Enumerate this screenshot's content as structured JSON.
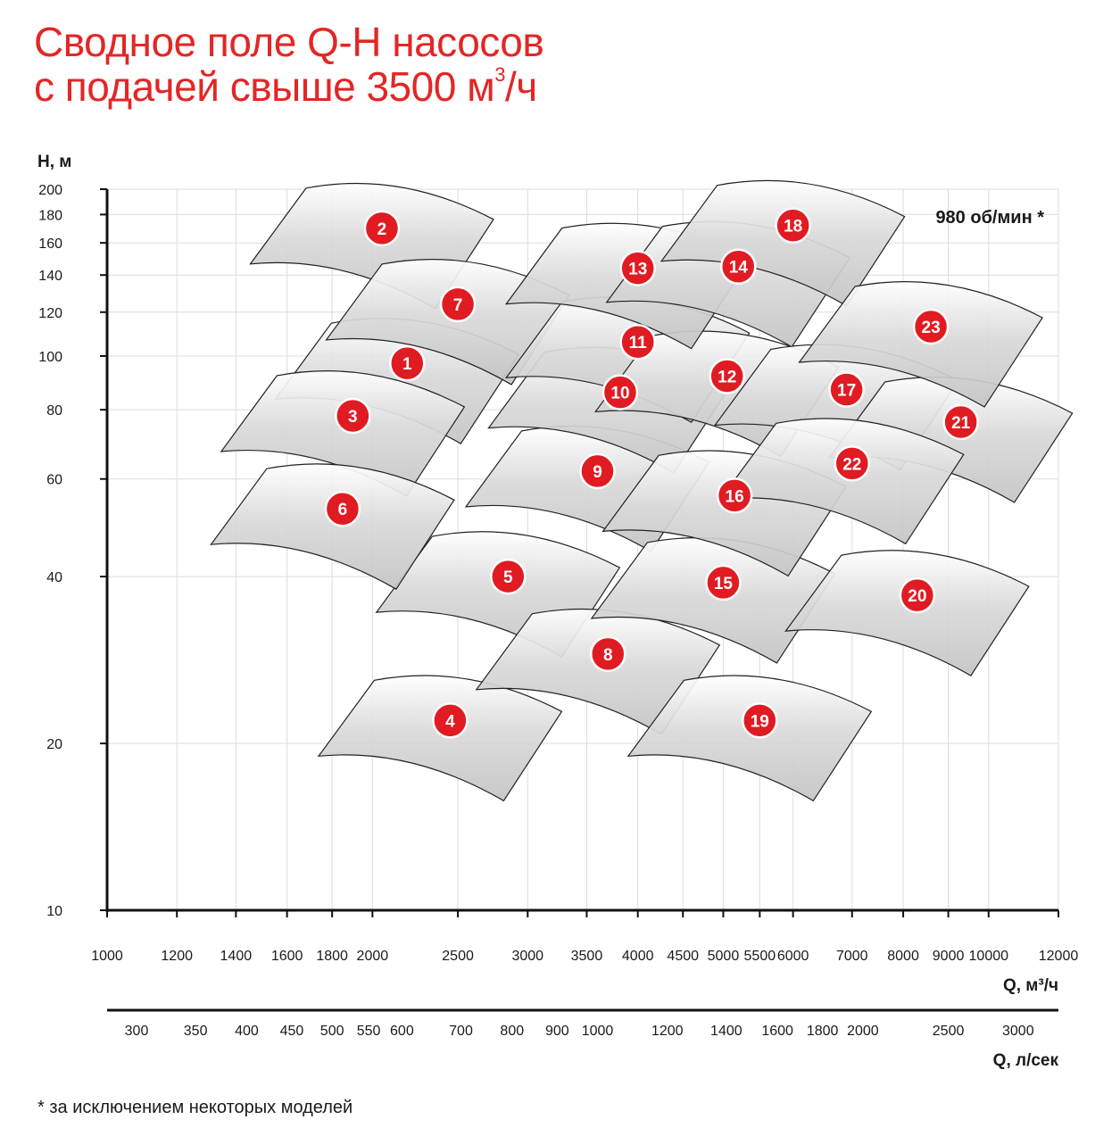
{
  "title": {
    "line1": "Сводное поле Q-H насосов",
    "line2_prefix": "с подачей свыше 3500 м",
    "line2_sup": "3",
    "line2_suffix": "/ч"
  },
  "footnote": "* за исключением некоторых моделей",
  "chart_data": {
    "type": "area",
    "y_axis": {
      "label": "H, м",
      "scale": "log",
      "range": [
        10,
        200
      ],
      "ticks": [
        10,
        20,
        40,
        60,
        80,
        100,
        120,
        140,
        160,
        180,
        200
      ],
      "tick_labels": [
        "10",
        "20",
        "40",
        "60",
        "80",
        "100",
        "120",
        "140",
        "160",
        "180",
        "200"
      ]
    },
    "x_axis": {
      "label": "Q, м³/ч",
      "scale": "log",
      "range": [
        1000,
        12000
      ],
      "ticks": [
        1000,
        1200,
        1400,
        1600,
        1800,
        2000,
        2500,
        3000,
        3500,
        4000,
        4500,
        5000,
        5500,
        6000,
        7000,
        8000,
        9000,
        10000,
        12000
      ],
      "tick_labels": [
        "1000",
        "1200",
        "1400",
        "1600",
        "1800",
        "2000",
        "2500",
        "3000",
        "3500",
        "4000",
        "4500",
        "5000",
        "5500",
        "6000",
        "7000",
        "8000",
        "9000",
        "10000",
        "12000"
      ]
    },
    "x2_axis": {
      "label": "Q, л/сек",
      "ticks": [
        300,
        350,
        400,
        450,
        500,
        550,
        600,
        700,
        800,
        900,
        1000,
        1200,
        1400,
        1600,
        1800,
        2000,
        2500,
        3000
      ],
      "tick_labels": [
        "300",
        "350",
        "400",
        "450",
        "500",
        "550",
        "600",
        "700",
        "800",
        "900",
        "1000",
        "1200",
        "1400",
        "1600",
        "1800",
        "2000",
        "2500",
        "3000"
      ]
    },
    "annotation": "980 об/мин *",
    "grid": true,
    "badge_color": "#e11b22",
    "region_fill": "#c9c9c9",
    "regions": [
      {
        "label": "1",
        "center": {
          "q": 2190,
          "h": 97
        }
      },
      {
        "label": "2",
        "center": {
          "q": 2050,
          "h": 170
        }
      },
      {
        "label": "3",
        "center": {
          "q": 1900,
          "h": 78
        }
      },
      {
        "label": "4",
        "center": {
          "q": 2450,
          "h": 22
        }
      },
      {
        "label": "5",
        "center": {
          "q": 2850,
          "h": 40
        }
      },
      {
        "label": "6",
        "center": {
          "q": 1850,
          "h": 53
        }
      },
      {
        "label": "7",
        "center": {
          "q": 2500,
          "h": 124
        }
      },
      {
        "label": "8",
        "center": {
          "q": 3700,
          "h": 29
        }
      },
      {
        "label": "9",
        "center": {
          "q": 3600,
          "h": 62
        }
      },
      {
        "label": "10",
        "center": {
          "q": 3820,
          "h": 86
        }
      },
      {
        "label": "11",
        "center": {
          "q": 4000,
          "h": 106
        }
      },
      {
        "label": "12",
        "center": {
          "q": 5050,
          "h": 92
        }
      },
      {
        "label": "13",
        "center": {
          "q": 4000,
          "h": 144
        }
      },
      {
        "label": "14",
        "center": {
          "q": 5200,
          "h": 145
        }
      },
      {
        "label": "15",
        "center": {
          "q": 5000,
          "h": 39
        }
      },
      {
        "label": "16",
        "center": {
          "q": 5150,
          "h": 56
        }
      },
      {
        "label": "17",
        "center": {
          "q": 6900,
          "h": 87
        }
      },
      {
        "label": "18",
        "center": {
          "q": 6000,
          "h": 172
        }
      },
      {
        "label": "19",
        "center": {
          "q": 5500,
          "h": 22
        }
      },
      {
        "label": "20",
        "center": {
          "q": 8300,
          "h": 37
        }
      },
      {
        "label": "21",
        "center": {
          "q": 9300,
          "h": 76
        }
      },
      {
        "label": "22",
        "center": {
          "q": 7000,
          "h": 64
        }
      },
      {
        "label": "23",
        "center": {
          "q": 8600,
          "h": 113
        }
      }
    ]
  }
}
